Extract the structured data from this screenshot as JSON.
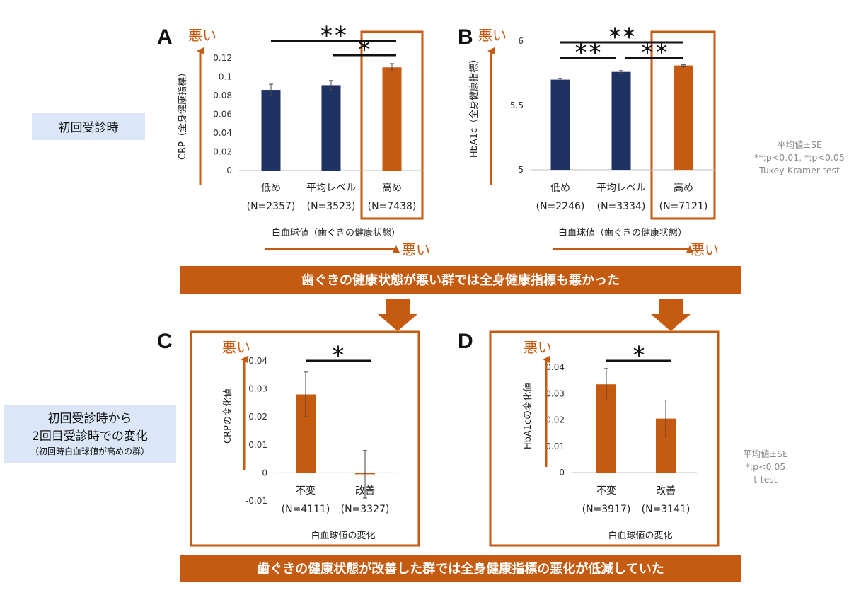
{
  "colors": {
    "orange": "#c55a11",
    "navy": "#1f3264",
    "side_box": "#dbe7f8"
  },
  "labels": {
    "first_visit": "初回受診時",
    "change_line1": "初回受診時から",
    "change_line2": "2回目受診時での変化",
    "change_line3": "（初回時白血球値が高めの群）",
    "banner1": "歯ぐきの健康状態が悪い群では全身健康指標も悪かった",
    "banner2": "歯ぐきの健康状態が改善した群では全身健康指標の悪化が低減していた",
    "stat_top_1": "平均値±SE",
    "stat_top_2": "**;p<0.01, *;p<0.05",
    "stat_top_3": "Tukey-Kramer test",
    "stat_bot_1": "平均値±SE",
    "stat_bot_2": "*;p<0.05",
    "stat_bot_3": "t-test"
  },
  "chart_data": [
    {
      "panel": "A",
      "type": "bar",
      "categories": [
        "低め",
        "平均レベル",
        "高め"
      ],
      "n_labels": [
        "(N=2357)",
        "(N=3523)",
        "(N=7438)"
      ],
      "values": [
        0.086,
        0.091,
        0.11
      ],
      "errors": [
        0.006,
        0.005,
        0.004
      ],
      "colors": [
        "#1f3264",
        "#1f3264",
        "#c55a11"
      ],
      "ylim": [
        0,
        0.12
      ],
      "yticks": [
        0,
        0.02,
        0.04,
        0.06,
        0.08,
        0.1,
        0.12
      ],
      "ytick_labels": [
        "0",
        "0.02",
        "0.04",
        "0.06",
        "0.08",
        "0.1",
        "0.12"
      ],
      "ylabel": "CRP（全身健康指標）",
      "xlabel": "白血球値（歯ぐきの健康状態）",
      "worse_label": "悪い",
      "x_worse_label": "悪い",
      "significance": [
        {
          "from": 0,
          "to": 2,
          "label": "＊＊"
        },
        {
          "from": 1,
          "to": 2,
          "label": "＊"
        }
      ]
    },
    {
      "panel": "B",
      "type": "bar",
      "categories": [
        "低め",
        "平均レベル",
        "高め"
      ],
      "n_labels": [
        "(N=2246)",
        "(N=3334)",
        "(N=7121)"
      ],
      "values": [
        5.7,
        5.76,
        5.81
      ],
      "errors": [
        0.01,
        0.01,
        0.005
      ],
      "colors": [
        "#1f3264",
        "#1f3264",
        "#c55a11"
      ],
      "ylim": [
        5,
        6
      ],
      "yticks": [
        5,
        5.5,
        6
      ],
      "ytick_labels": [
        "5",
        "5.5",
        "6"
      ],
      "ylabel": "HbA1c（全身健康指標）",
      "xlabel": "白血球値（歯ぐきの健康状態）",
      "worse_label": "悪い",
      "x_worse_label": "悪い",
      "significance": [
        {
          "from": 0,
          "to": 2,
          "label": "＊＊"
        },
        {
          "from": 0,
          "to": 1,
          "label": "＊＊"
        },
        {
          "from": 1,
          "to": 2,
          "label": "＊＊"
        }
      ]
    },
    {
      "panel": "C",
      "type": "bar",
      "categories": [
        "不変",
        "改善"
      ],
      "n_labels": [
        "(N=4111)",
        "(N=3327)"
      ],
      "values": [
        0.028,
        -0.0005
      ],
      "errors": [
        0.008,
        0.0085
      ],
      "colors": [
        "#c55a11",
        "#c55a11"
      ],
      "ylim": [
        -0.01,
        0.04
      ],
      "yticks": [
        -0.01,
        0,
        0.01,
        0.02,
        0.03,
        0.04
      ],
      "ytick_labels": [
        "-0.01",
        "0",
        "0.01",
        "0.02",
        "0.03",
        "0.04"
      ],
      "ylabel": "CRPの変化値",
      "xlabel": "白血球値の変化",
      "worse_label": "悪い",
      "significance": [
        {
          "from": 0,
          "to": 1,
          "label": "＊"
        }
      ]
    },
    {
      "panel": "D",
      "type": "bar",
      "categories": [
        "不変",
        "改善"
      ],
      "n_labels": [
        "(N=3917)",
        "(N=3141)"
      ],
      "values": [
        0.0335,
        0.0205
      ],
      "errors": [
        0.006,
        0.007
      ],
      "colors": [
        "#c55a11",
        "#c55a11"
      ],
      "ylim": [
        0,
        0.04
      ],
      "yticks": [
        0,
        0.01,
        0.02,
        0.03,
        0.04
      ],
      "ytick_labels": [
        "0",
        "0.01",
        "0.02",
        "0.03",
        "0.04"
      ],
      "ylabel": "HbA1cの変化値",
      "xlabel": "白血球値の変化",
      "worse_label": "悪い",
      "significance": [
        {
          "from": 0,
          "to": 1,
          "label": "＊"
        }
      ]
    }
  ]
}
